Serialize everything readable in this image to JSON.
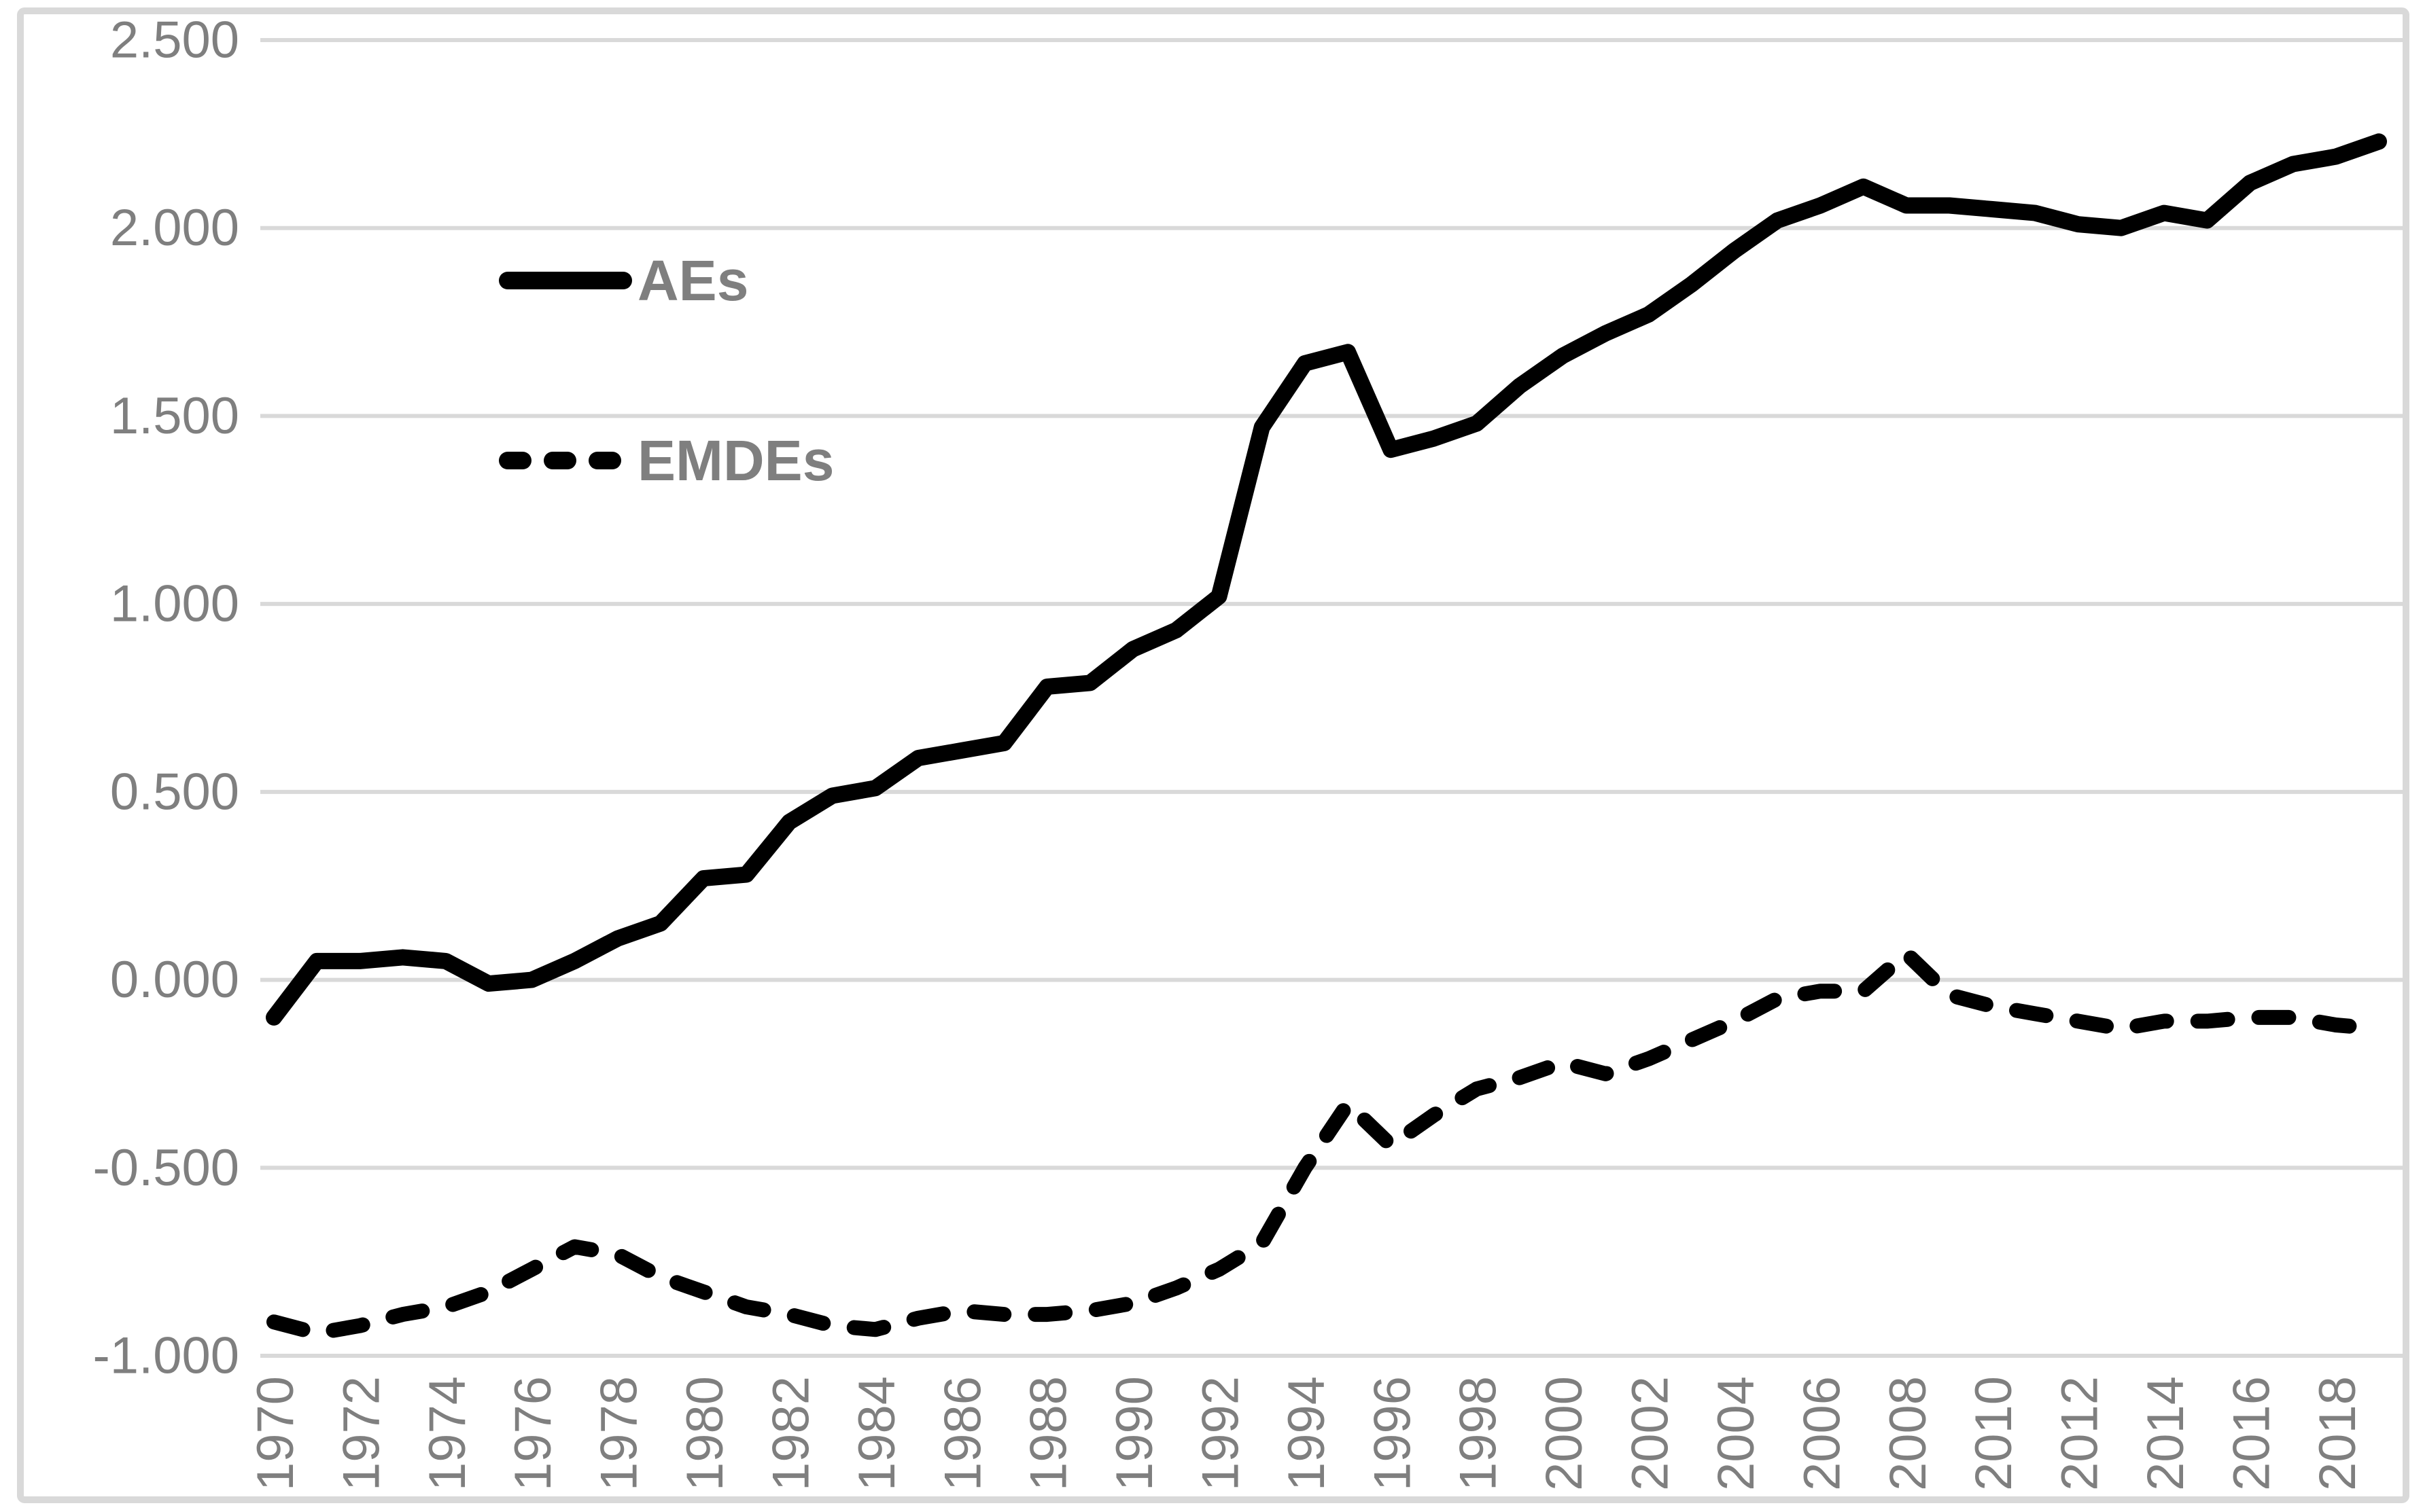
{
  "chart_data": {
    "type": "line",
    "title": "",
    "xlabel": "",
    "ylabel": "",
    "x": [
      1970,
      1971,
      1972,
      1973,
      1974,
      1975,
      1976,
      1977,
      1978,
      1979,
      1980,
      1981,
      1982,
      1983,
      1984,
      1985,
      1986,
      1987,
      1988,
      1989,
      1990,
      1991,
      1992,
      1993,
      1994,
      1995,
      1996,
      1997,
      1998,
      1999,
      2000,
      2001,
      2002,
      2003,
      2004,
      2005,
      2006,
      2007,
      2008,
      2009,
      2010,
      2011,
      2012,
      2013,
      2014,
      2015,
      2016,
      2017,
      2018,
      2019
    ],
    "series": [
      {
        "name": "AEs",
        "line_style": "solid",
        "values": [
          -0.1,
          0.05,
          0.05,
          0.06,
          0.05,
          -0.01,
          0.0,
          0.05,
          0.11,
          0.15,
          0.27,
          0.28,
          0.42,
          0.49,
          0.51,
          0.59,
          0.61,
          0.63,
          0.78,
          0.79,
          0.88,
          0.93,
          1.02,
          1.47,
          1.64,
          1.67,
          1.41,
          1.44,
          1.48,
          1.58,
          1.66,
          1.72,
          1.77,
          1.85,
          1.94,
          2.02,
          2.06,
          2.11,
          2.06,
          2.06,
          2.05,
          2.04,
          2.01,
          2.0,
          2.04,
          2.02,
          2.12,
          2.17,
          2.19,
          2.23
        ]
      },
      {
        "name": "EMDEs",
        "line_style": "dashed",
        "values": [
          -0.91,
          -0.94,
          -0.92,
          -0.89,
          -0.87,
          -0.83,
          -0.77,
          -0.71,
          -0.73,
          -0.79,
          -0.83,
          -0.87,
          -0.89,
          -0.92,
          -0.93,
          -0.9,
          -0.88,
          -0.89,
          -0.89,
          -0.88,
          -0.86,
          -0.82,
          -0.77,
          -0.7,
          -0.5,
          -0.33,
          -0.44,
          -0.36,
          -0.29,
          -0.26,
          -0.22,
          -0.25,
          -0.21,
          -0.16,
          -0.11,
          -0.05,
          -0.03,
          -0.03,
          0.07,
          -0.04,
          -0.07,
          -0.09,
          -0.11,
          -0.13,
          -0.11,
          -0.11,
          -0.1,
          -0.1,
          -0.12,
          -0.13
        ]
      }
    ],
    "yticks": [
      {
        "value": 2.5,
        "label": "2.500"
      },
      {
        "value": 2.0,
        "label": "2.000"
      },
      {
        "value": 1.5,
        "label": "1.500"
      },
      {
        "value": 1.0,
        "label": "1.000"
      },
      {
        "value": 0.5,
        "label": "0.500"
      },
      {
        "value": 0.0,
        "label": "0.000"
      },
      {
        "value": -0.5,
        "label": "-0.500"
      },
      {
        "value": -1.0,
        "label": "-1.000"
      }
    ],
    "xticks": [
      {
        "value": 1970,
        "label": "1970"
      },
      {
        "value": 1972,
        "label": "1972"
      },
      {
        "value": 1974,
        "label": "1974"
      },
      {
        "value": 1976,
        "label": "1976"
      },
      {
        "value": 1978,
        "label": "1978"
      },
      {
        "value": 1980,
        "label": "1980"
      },
      {
        "value": 1982,
        "label": "1982"
      },
      {
        "value": 1984,
        "label": "1984"
      },
      {
        "value": 1986,
        "label": "1986"
      },
      {
        "value": 1988,
        "label": "1988"
      },
      {
        "value": 1990,
        "label": "1990"
      },
      {
        "value": 1992,
        "label": "1992"
      },
      {
        "value": 1994,
        "label": "1994"
      },
      {
        "value": 1996,
        "label": "1996"
      },
      {
        "value": 1998,
        "label": "1998"
      },
      {
        "value": 2000,
        "label": "2000"
      },
      {
        "value": 2002,
        "label": "2002"
      },
      {
        "value": 2004,
        "label": "2004"
      },
      {
        "value": 2006,
        "label": "2006"
      },
      {
        "value": 2008,
        "label": "2008"
      },
      {
        "value": 2010,
        "label": "2010"
      },
      {
        "value": 2012,
        "label": "2012"
      },
      {
        "value": 2014,
        "label": "2014"
      },
      {
        "value": 2016,
        "label": "2016"
      },
      {
        "value": 2018,
        "label": "2018"
      }
    ],
    "ylim": [
      -1.0,
      2.5
    ],
    "xlim": [
      1970,
      2019
    ],
    "grid": true,
    "legend": {
      "position": "upper-left-inside",
      "entries": [
        "AEs",
        "EMDEs"
      ]
    },
    "colors": {
      "line": "#000000",
      "grid": "#d9d9d9",
      "border": "#d9d9d9",
      "tick_text": "#7f7f7f",
      "legend_text": "#7f7f7f",
      "background": "#ffffff"
    }
  }
}
